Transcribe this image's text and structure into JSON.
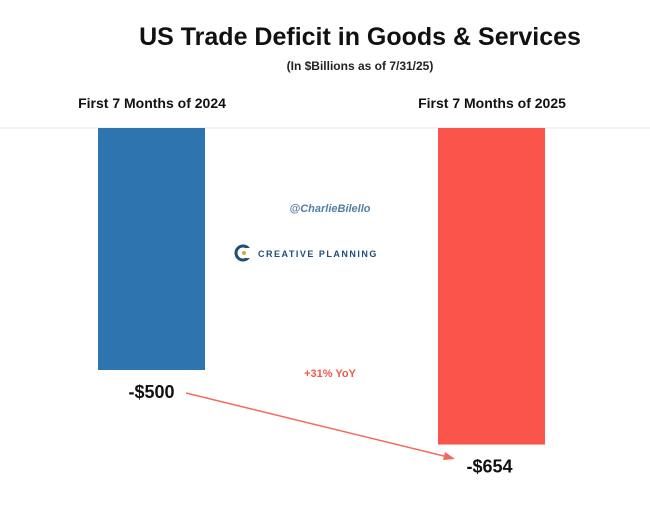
{
  "chart_data": {
    "type": "bar",
    "title": "US Trade Deficit in Goods & Services",
    "subtitle": "(In $Billions as of 7/31/25)",
    "categories": [
      "First 7 Months of 2024",
      "First 7 Months of 2025"
    ],
    "values": [
      -500,
      -654
    ],
    "data_labels": [
      "-$500",
      "-$654"
    ],
    "colors": [
      "#2e75b0",
      "#f9534a"
    ],
    "annotation": "+31% YoY",
    "ylim": [
      -700,
      0
    ],
    "xlabel": "",
    "ylabel": "",
    "grid": false
  },
  "watermark": {
    "handle": "@CharlieBilello",
    "brand": "CREATIVE PLANNING"
  }
}
